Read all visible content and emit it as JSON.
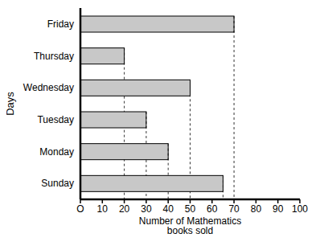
{
  "chart_data": {
    "type": "bar",
    "orientation": "horizontal",
    "categories": [
      "Friday",
      "Thursday",
      "Wednesday",
      "Tuesday",
      "Monday",
      "Sunday"
    ],
    "values": [
      70,
      20,
      50,
      30,
      40,
      65
    ],
    "color": "#c8c8c8",
    "xlabel": "Number of Mathematics books sold",
    "ylabel": "Days",
    "xlim": [
      0,
      100
    ],
    "xticks": [
      {
        "value": 0,
        "label": "O"
      },
      10,
      20,
      30,
      40,
      50,
      60,
      70,
      80,
      90,
      100
    ],
    "grid": false
  }
}
